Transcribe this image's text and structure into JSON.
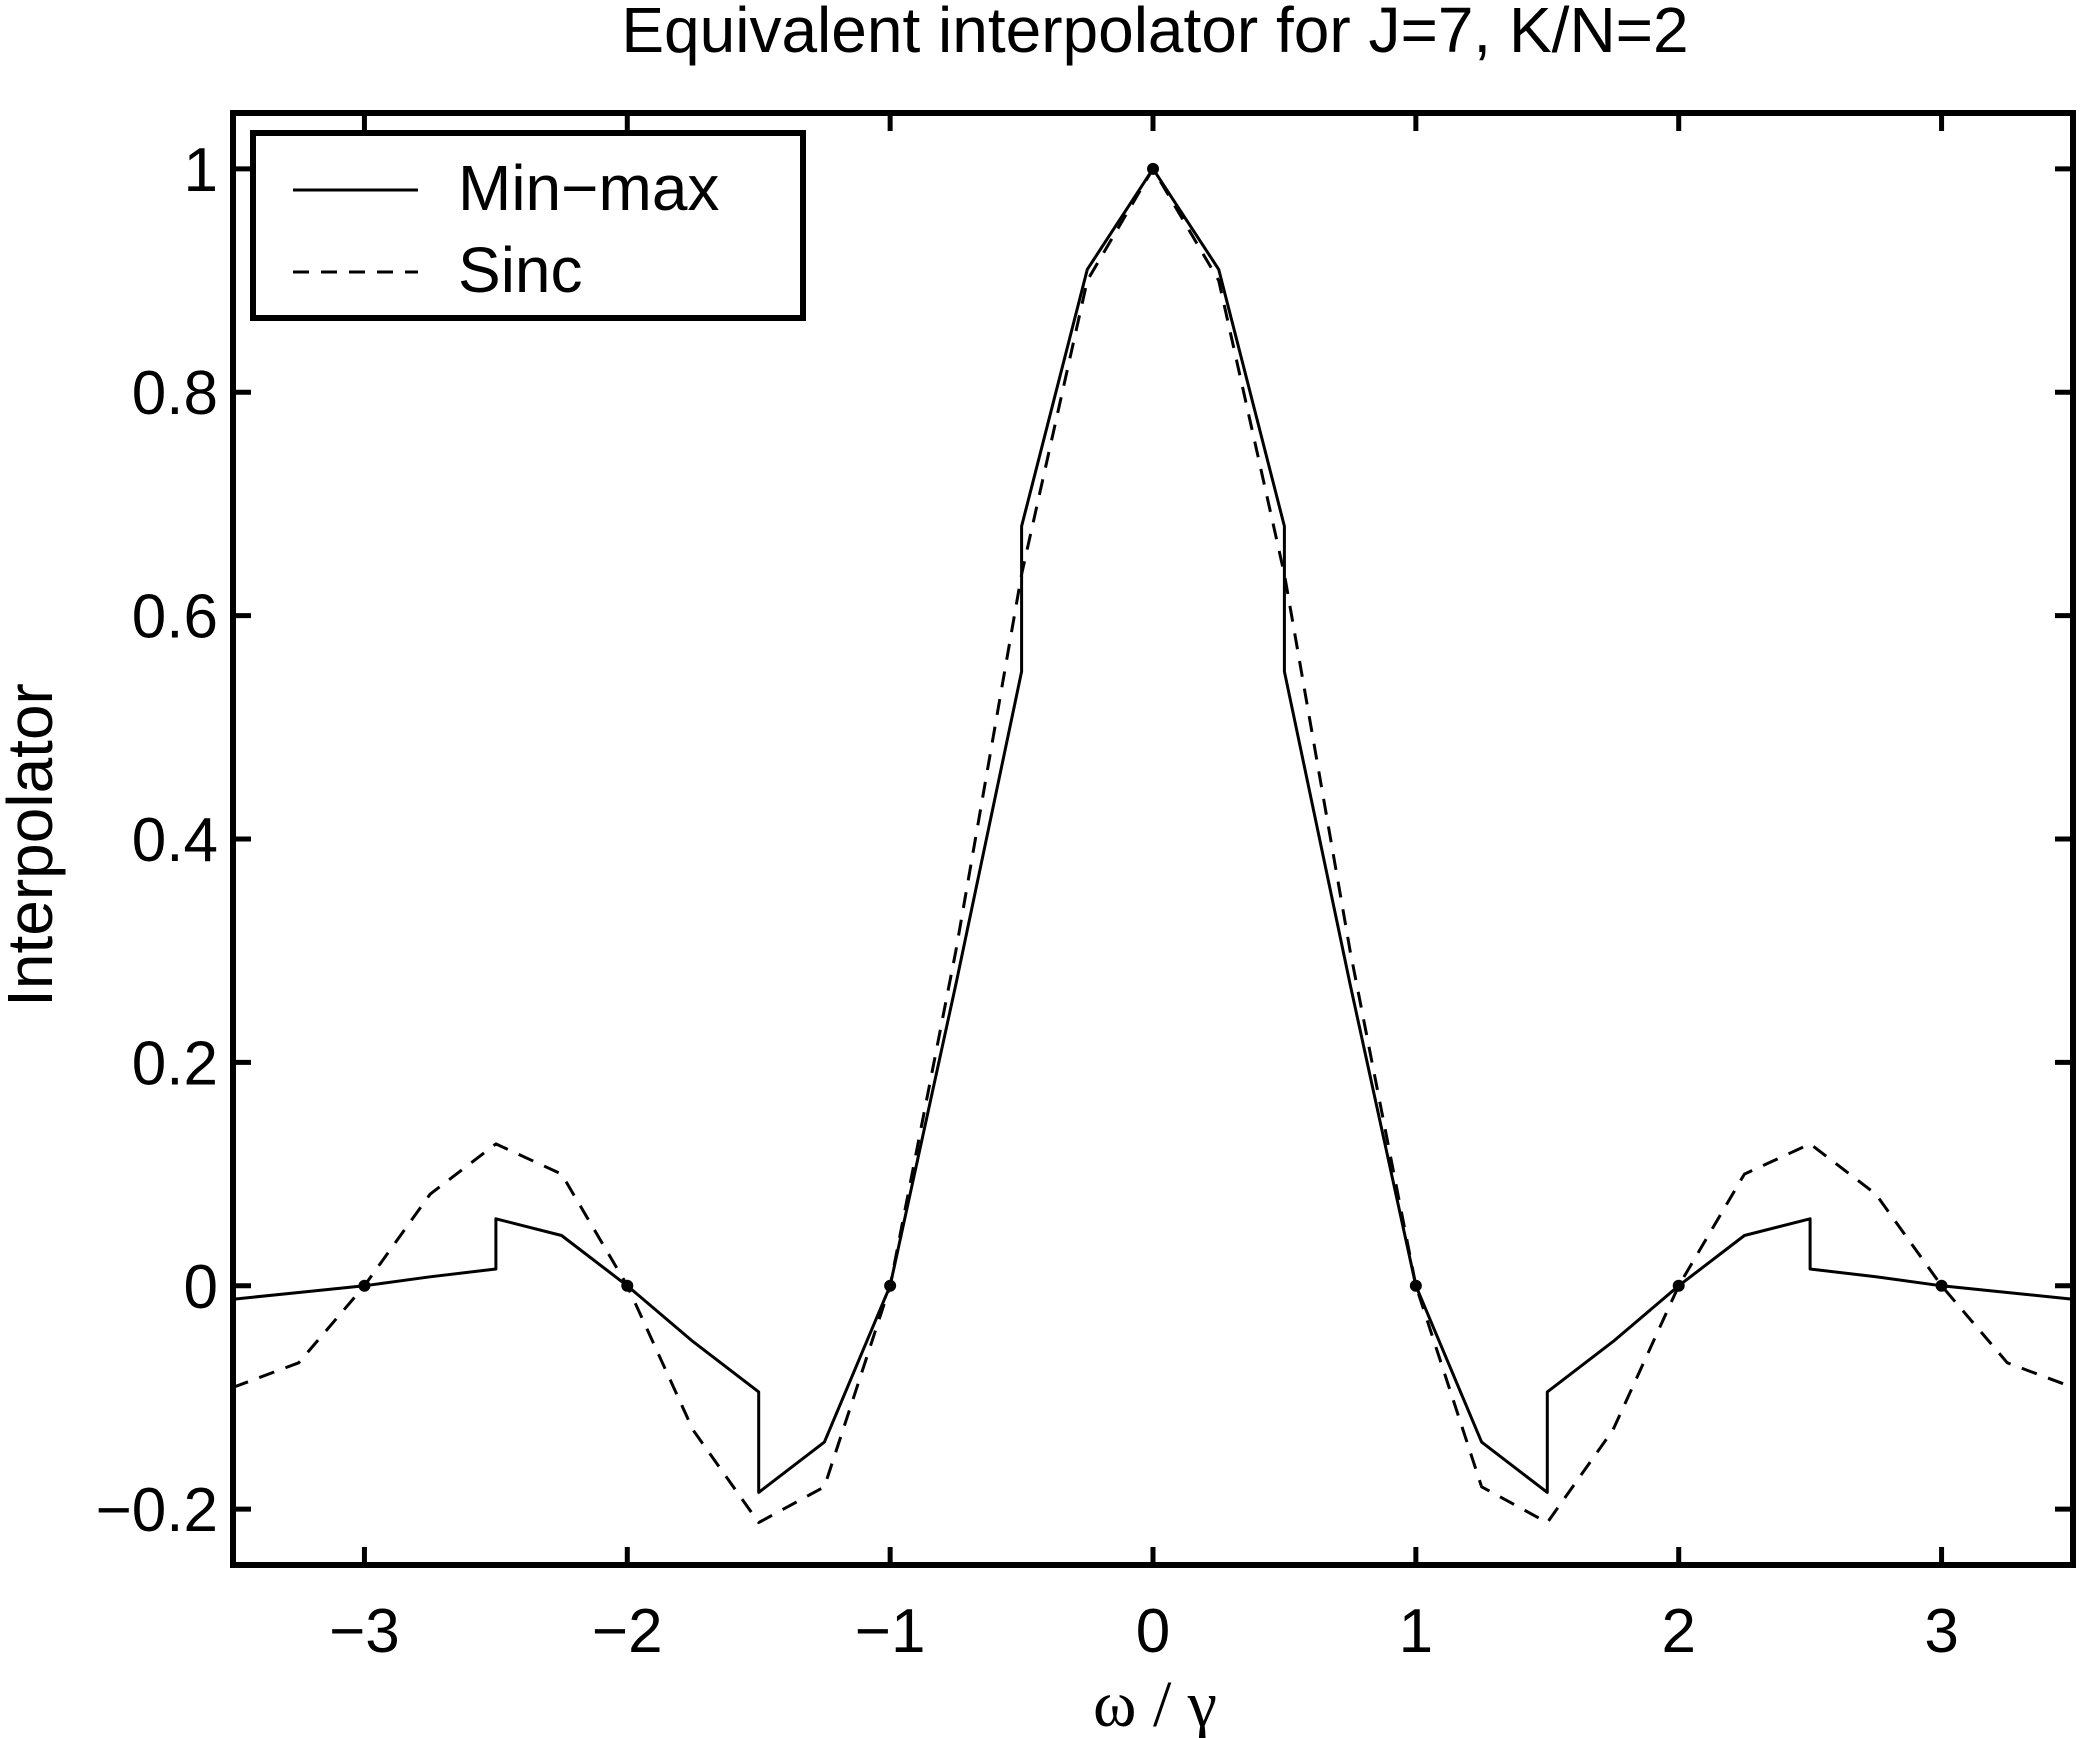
{
  "chart_data": {
    "type": "line",
    "title": "Equivalent interpolator for J=7, K/N=2",
    "xlabel": "ω / γ",
    "ylabel": "Interpolator",
    "xlim": [
      -3.5,
      3.5
    ],
    "ylim": [
      -0.25,
      1.05
    ],
    "xticks": [
      -3,
      -2,
      -1,
      0,
      1,
      2,
      3
    ],
    "xtick_labels": [
      "−3",
      "−2",
      "−1",
      "0",
      "1",
      "2",
      "3"
    ],
    "yticks": [
      -0.2,
      0,
      0.2,
      0.4,
      0.6,
      0.8,
      1
    ],
    "ytick_labels": [
      "−0.2",
      "0",
      "0.2",
      "0.4",
      "0.6",
      "0.8",
      "1"
    ],
    "grid": false,
    "legend_position": "top-left",
    "series": [
      {
        "name": "Min−max",
        "style": "solid",
        "color": "#000000",
        "x": [
          -3.5,
          -3.25,
          -3.0,
          -2.75,
          -2.5,
          -2.5,
          -2.25,
          -2.0,
          -1.75,
          -1.5,
          -1.5,
          -1.25,
          -1.0,
          -0.75,
          -0.5,
          -0.5,
          -0.25,
          0.0,
          0.25,
          0.5,
          0.5,
          0.75,
          1.0,
          1.25,
          1.5,
          1.5,
          1.75,
          2.0,
          2.25,
          2.5,
          2.5,
          2.75,
          3.0,
          3.25,
          3.5
        ],
        "y": [
          -0.012,
          -0.006,
          0.0,
          0.008,
          0.015,
          0.06,
          0.045,
          0.0,
          -0.05,
          -0.095,
          -0.185,
          -0.14,
          0.0,
          0.27,
          0.55,
          0.68,
          0.91,
          1.0,
          0.91,
          0.68,
          0.55,
          0.27,
          0.0,
          -0.14,
          -0.185,
          -0.095,
          -0.05,
          0.0,
          0.045,
          0.06,
          0.015,
          0.008,
          0.0,
          -0.006,
          -0.012
        ]
      },
      {
        "name": "Sinc",
        "style": "dashed",
        "color": "#000000",
        "x": [
          -3.5,
          -3.25,
          -3.0,
          -2.75,
          -2.5,
          -2.25,
          -2.0,
          -1.75,
          -1.5,
          -1.25,
          -1.0,
          -0.75,
          -0.5,
          -0.25,
          0.0,
          0.25,
          0.5,
          0.75,
          1.0,
          1.25,
          1.5,
          1.75,
          2.0,
          2.25,
          2.5,
          2.75,
          3.0,
          3.25,
          3.5
        ],
        "y": [
          -0.091,
          -0.069,
          0.0,
          0.082,
          0.127,
          0.1,
          0.0,
          -0.129,
          -0.212,
          -0.18,
          0.0,
          0.3,
          0.637,
          0.9,
          1.0,
          0.9,
          0.637,
          0.3,
          0.0,
          -0.18,
          -0.212,
          -0.129,
          0.0,
          0.1,
          0.127,
          0.082,
          0.0,
          -0.069,
          -0.091
        ]
      }
    ],
    "markers": {
      "x": [
        -3,
        -2,
        -1,
        0,
        1,
        2,
        3
      ],
      "y": [
        0,
        0,
        0,
        1,
        0,
        0,
        0
      ]
    }
  }
}
